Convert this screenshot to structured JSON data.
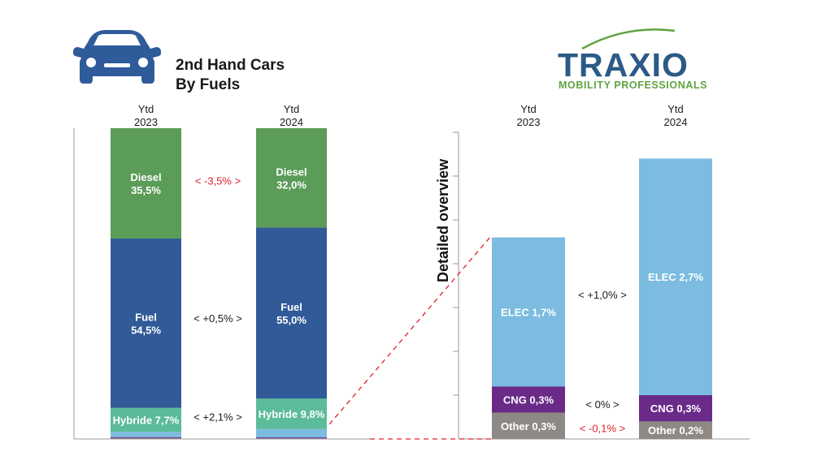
{
  "header": {
    "title_line1": "2nd Hand Cars",
    "title_line2": "By Fuels",
    "car_icon": "car-icon"
  },
  "logo": {
    "name": "TRAXIO",
    "tagline": "MOBILITY PROFESSIONALS",
    "swoosh_color": "#5fa341",
    "text_color": "#2b5a86"
  },
  "colors": {
    "diesel": "#5a9c58",
    "fuel": "#315a98",
    "hybride": "#5cbb98",
    "elec": "#7bbce0",
    "cng": "#6a2a88",
    "other": "#8e8984",
    "negative": "#e0202a",
    "connector": "#e0202a"
  },
  "chart_data": [
    {
      "type": "bar",
      "stacked": true,
      "title": "2nd Hand Cars By Fuels",
      "categories": [
        "Ytd 2023",
        "Ytd 2024"
      ],
      "category_lines": [
        [
          "Ytd",
          "2023"
        ],
        [
          "Ytd",
          "2024"
        ]
      ],
      "series": [
        {
          "name": "Other",
          "values": [
            0.3,
            0.2
          ],
          "label": [
            "",
            ""
          ]
        },
        {
          "name": "CNG",
          "values": [
            0.3,
            0.3
          ],
          "label": [
            "",
            ""
          ]
        },
        {
          "name": "Elec",
          "values": [
            1.7,
            2.7
          ],
          "label": [
            "",
            ""
          ]
        },
        {
          "name": "Hybride",
          "values": [
            7.7,
            9.8
          ],
          "label": [
            "Hybride 7,7%",
            "Hybride 9,8%"
          ]
        },
        {
          "name": "Fuel",
          "values": [
            54.5,
            55.0
          ],
          "label": [
            "Fuel\n54,5%",
            "Fuel\n55,0%"
          ]
        },
        {
          "name": "Diesel",
          "values": [
            35.5,
            32.0
          ],
          "label": [
            "Diesel\n35,5%",
            "Diesel\n32,0%"
          ]
        }
      ],
      "deltas": [
        {
          "series": "Diesel",
          "text": "< -3,5% >",
          "negative": true
        },
        {
          "series": "Fuel",
          "text": "< +0,5% >",
          "negative": false
        },
        {
          "series": "Hybride",
          "text": "< +2,1% >",
          "negative": false
        }
      ],
      "ylim": [
        0,
        100
      ],
      "unit": "%"
    },
    {
      "type": "bar",
      "stacked": true,
      "title": "Detailed overview",
      "ylabel": "Detailed overview",
      "categories": [
        "Ytd 2023",
        "Ytd 2024"
      ],
      "category_lines": [
        [
          "Ytd",
          "2023"
        ],
        [
          "Ytd",
          "2024"
        ]
      ],
      "series": [
        {
          "name": "Other",
          "values": [
            0.3,
            0.2
          ],
          "label": [
            "Other 0,3%",
            "Other 0,2%"
          ]
        },
        {
          "name": "CNG",
          "values": [
            0.3,
            0.3
          ],
          "label": [
            "CNG 0,3%",
            "CNG 0,3%"
          ]
        },
        {
          "name": "Elec",
          "values": [
            1.7,
            2.7
          ],
          "label": [
            "ELEC 1,7%",
            "ELEC 2,7%"
          ]
        }
      ],
      "deltas": [
        {
          "series": "Other",
          "text": "< -0,1% >",
          "negative": true
        },
        {
          "series": "CNG",
          "text": "< 0% >",
          "negative": false
        },
        {
          "series": "Elec",
          "text": "< +1,0% >",
          "negative": false
        }
      ],
      "ylim": [
        0,
        3.5
      ],
      "grid": false,
      "unit": "%"
    }
  ]
}
